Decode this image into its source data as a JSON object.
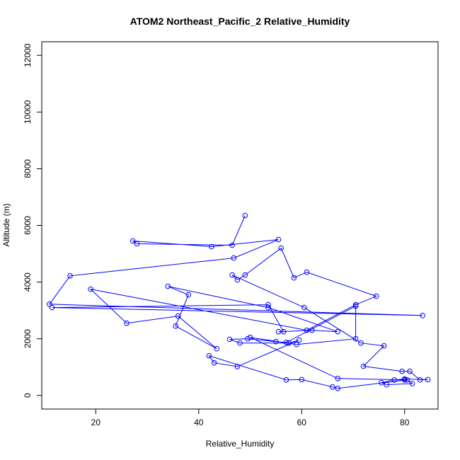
{
  "chart_data": {
    "type": "scatter",
    "title": "ATOM2 Northeast_Pacific_2 Relative_Humidity",
    "xlabel": "Relative_Humidity",
    "ylabel": "Altitude (m)",
    "xlim": [
      9.5,
      86.5
    ],
    "ylim": [
      -480,
      12480
    ],
    "x_ticks": [
      20,
      40,
      60,
      80
    ],
    "y_ticks": [
      0,
      2000,
      4000,
      6000,
      8000,
      10000,
      12000
    ],
    "grid": false,
    "legend": "none",
    "colors": {
      "series": "#0000ff",
      "axes": "#000000"
    },
    "series": [
      {
        "x": [
          49.0,
          46.5,
          28.0,
          27.2,
          42.5,
          55.5,
          46.8,
          15.0,
          11.0,
          83.5,
          11.5,
          53.5,
          56.5,
          55.5,
          62.0,
          67.0,
          53.5,
          34.0,
          38.0,
          35.5,
          43.5,
          36.0,
          26.0,
          19.0,
          61.0,
          70.5,
          74.5,
          61.0,
          58.5,
          56.0,
          49.0,
          47.5,
          46.5,
          60.5,
          71.5,
          76.0,
          72.0,
          79.5,
          81.0,
          83.0,
          84.5,
          80.0,
          78.0,
          75.5,
          76.5,
          81.5,
          80.5,
          67.0,
          66.0,
          60.0,
          57.0,
          42.0,
          43.0,
          47.5,
          59.5,
          57.5,
          48.0,
          46.0,
          49.5,
          55.0,
          57.0,
          70.5,
          70.5,
          59.0,
          50.0,
          67.0,
          80.0
        ],
        "y": [
          6350,
          5300,
          5350,
          5450,
          5250,
          5500,
          4850,
          4220,
          3220,
          2820,
          3100,
          3200,
          2250,
          2250,
          2300,
          2250,
          3100,
          3850,
          3550,
          2450,
          1650,
          2800,
          2550,
          3750,
          2300,
          3200,
          3500,
          4350,
          4150,
          5200,
          4250,
          4080,
          4250,
          3100,
          1850,
          1750,
          1030,
          850,
          850,
          550,
          560,
          580,
          550,
          450,
          380,
          420,
          550,
          250,
          300,
          560,
          550,
          1400,
          1150,
          1020,
          1950,
          1850,
          1850,
          1980,
          2000,
          1900,
          1870,
          3150,
          2000,
          1800,
          2050,
          600,
          550
        ]
      }
    ]
  }
}
